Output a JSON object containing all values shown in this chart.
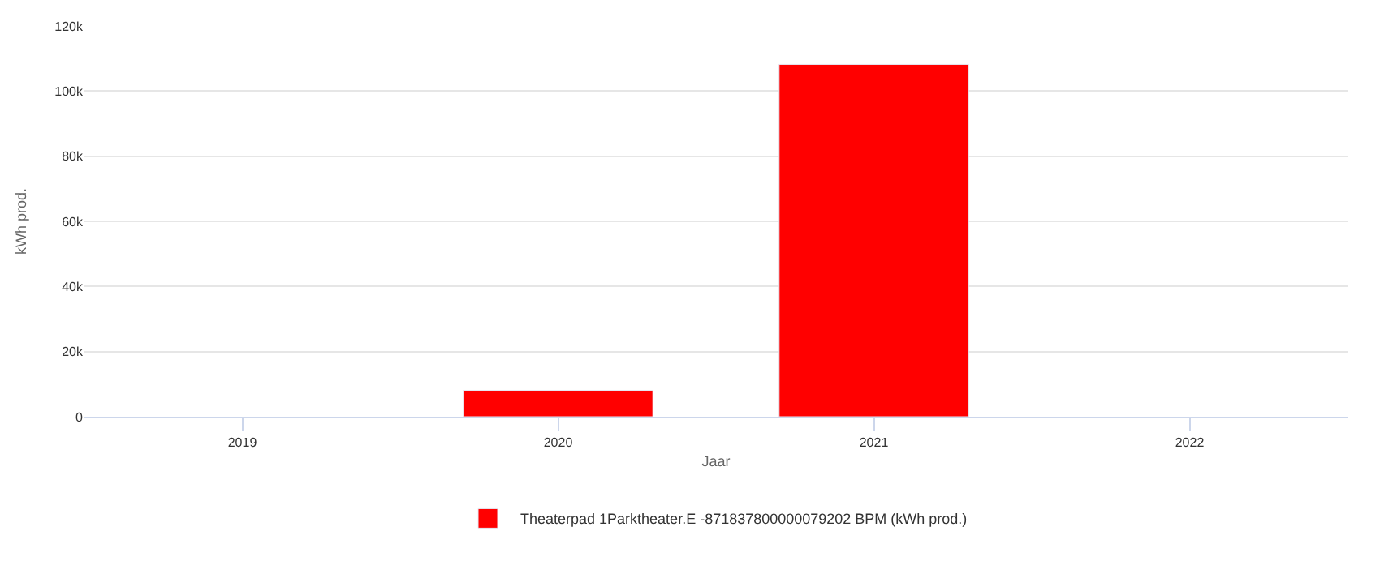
{
  "chart_data": {
    "type": "bar",
    "xlabel": "Jaar",
    "ylabel": "kWh prod.",
    "categories": [
      "2019",
      "2020",
      "2021",
      "2022"
    ],
    "series": [
      {
        "name": "Theaterpad 1Parktheater.E -871837800000079202 BPM (kWh prod.)",
        "color": "#ff0000",
        "values": [
          null,
          8100,
          108200,
          null
        ]
      }
    ],
    "ylim": [
      0,
      120000
    ],
    "yticks": [
      {
        "value": 0,
        "label": "0"
      },
      {
        "value": 20000,
        "label": "20k"
      },
      {
        "value": 40000,
        "label": "40k"
      },
      {
        "value": 60000,
        "label": "60k"
      },
      {
        "value": 80000,
        "label": "80k"
      },
      {
        "value": 100000,
        "label": "100k"
      },
      {
        "value": 120000,
        "label": "120k"
      }
    ],
    "grid": "y",
    "legend": "bottom"
  }
}
